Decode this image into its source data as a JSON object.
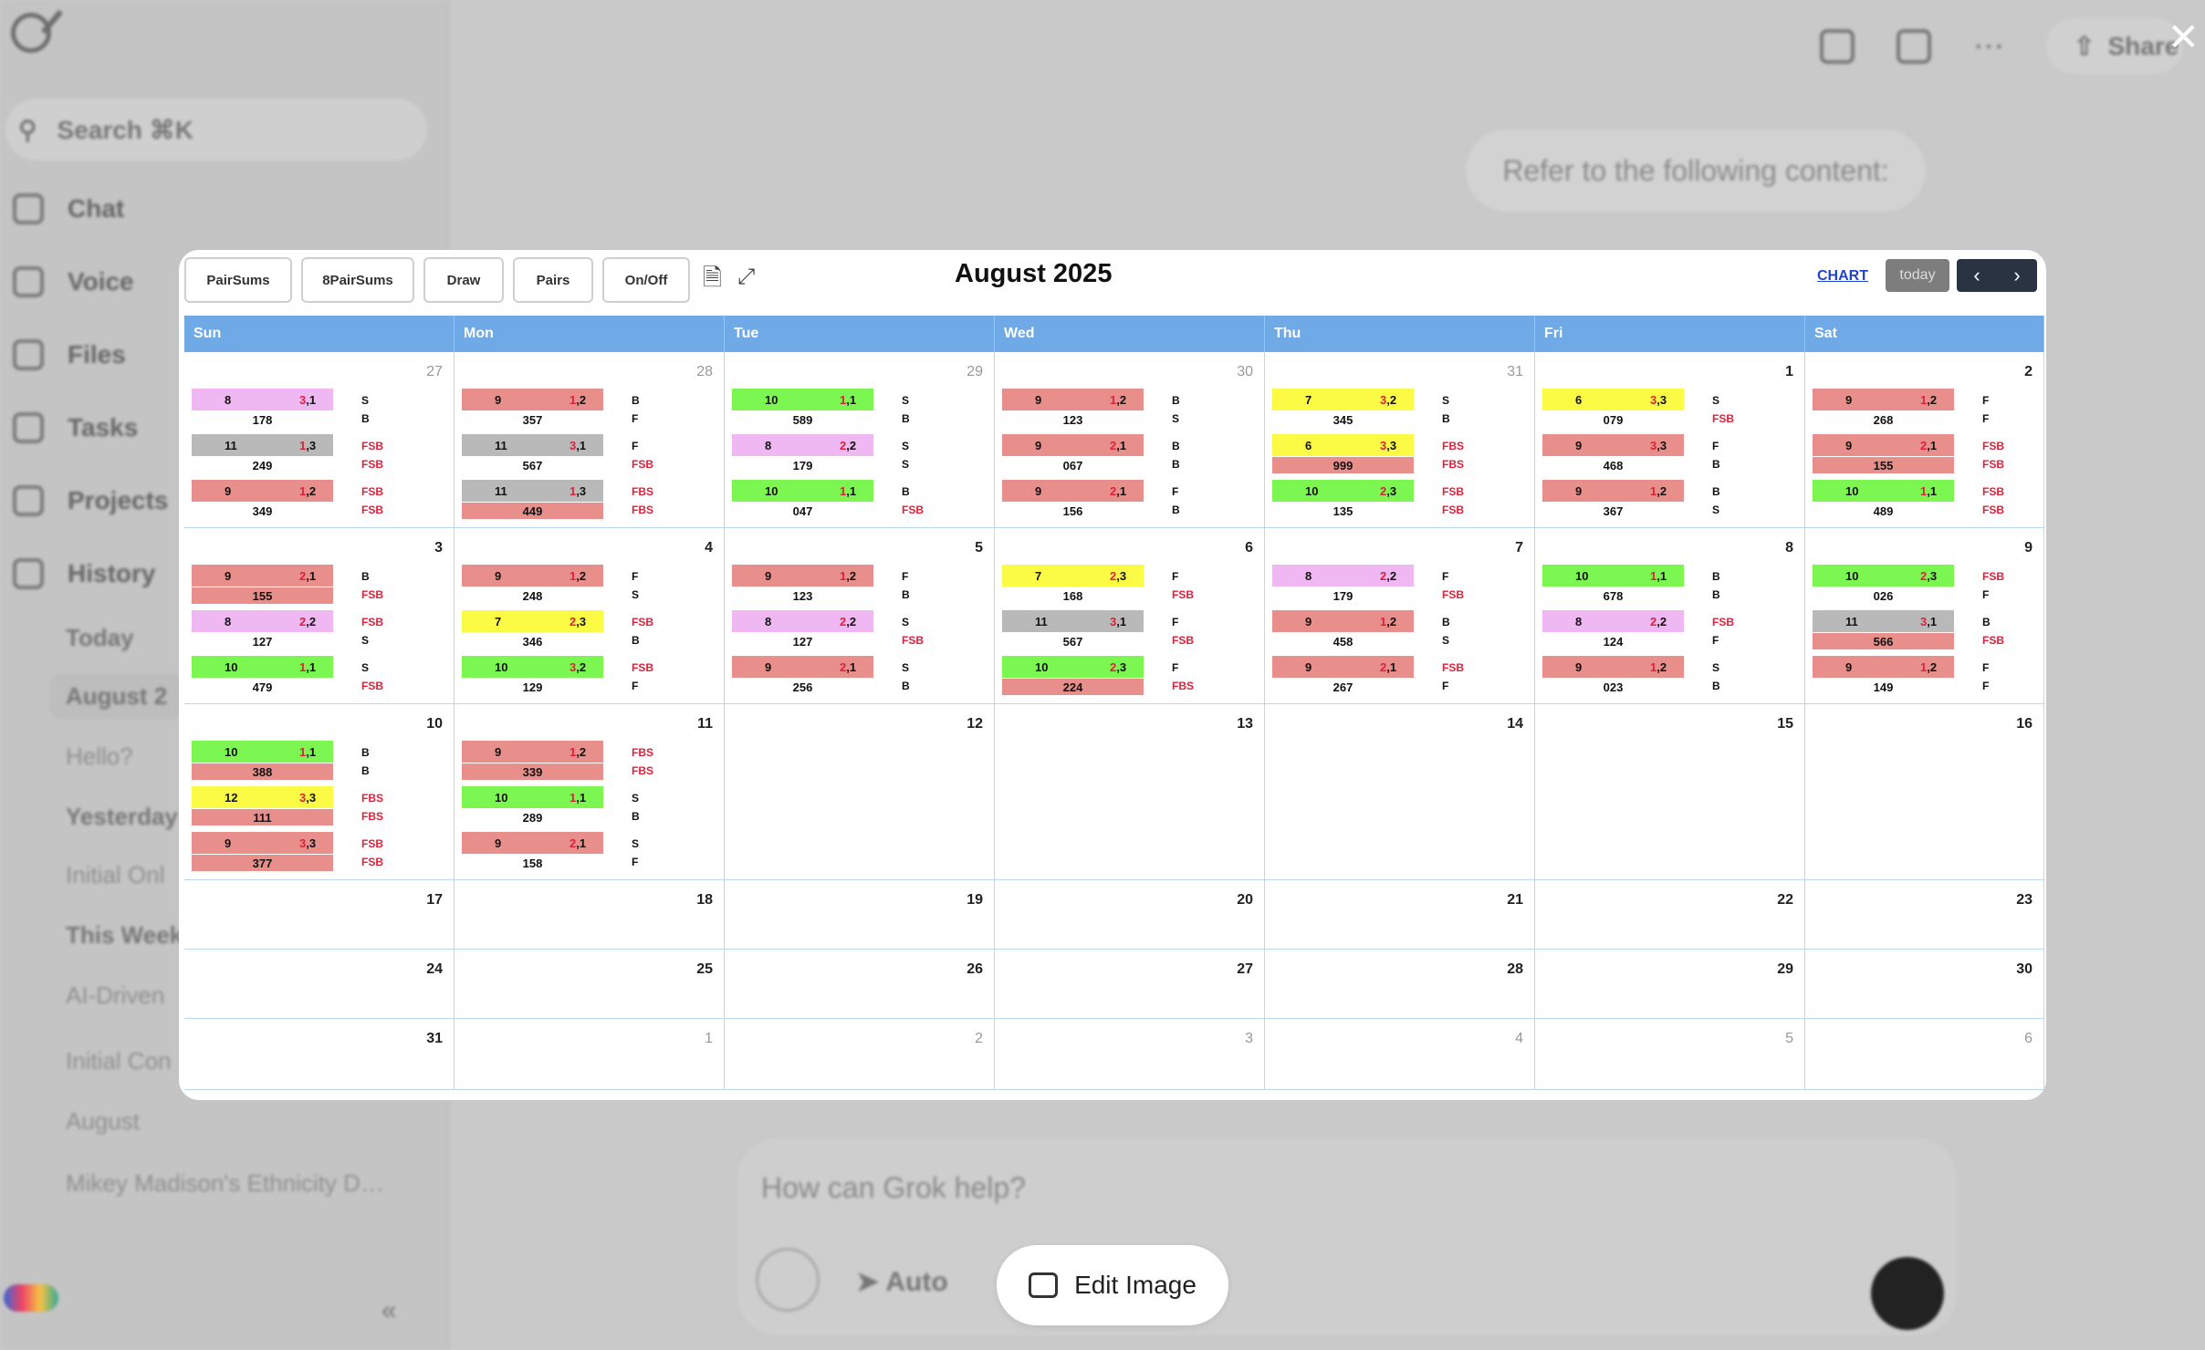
{
  "app": {
    "search_placeholder": "Search ⌘K",
    "nav": [
      "Chat",
      "Voice",
      "Files",
      "Tasks",
      "Projects",
      "History"
    ],
    "history": [
      {
        "label": "Today",
        "style": "head"
      },
      {
        "label": "August 2",
        "style": "sel"
      },
      {
        "label": "Hello?",
        "style": "dim"
      },
      {
        "label": "Yesterday",
        "style": "head"
      },
      {
        "label": "Initial Onl",
        "style": "dim"
      },
      {
        "label": "This Week",
        "style": "head"
      },
      {
        "label": "AI-Driven",
        "style": "dim"
      },
      {
        "label": "Initial Con",
        "style": "dim"
      },
      {
        "label": "August",
        "style": "dim"
      },
      {
        "label": "Mikey Madison's Ethnicity D…",
        "style": "dim"
      }
    ],
    "share_label": "Share",
    "bubble_text": "Refer to the following content:",
    "composer_placeholder": "How can Grok help?",
    "auto_label": "Auto",
    "edit_image_label": "Edit Image",
    "close_glyph": "✕"
  },
  "calendar": {
    "toolbar": [
      "PairSums",
      "8PairSums",
      "Draw",
      "Pairs",
      "On/Off"
    ],
    "title": "August 2025",
    "chart_link": "CHART",
    "today_label": "today",
    "prev": "‹",
    "next": "›",
    "weekdays": [
      "Sun",
      "Mon",
      "Tue",
      "Wed",
      "Thu",
      "Fri",
      "Sat"
    ],
    "colors": {
      "pink": "#e98f8b",
      "green": "#7cf752",
      "yellow": "#fbfb46",
      "gray": "#b9b9b9",
      "lavender": "#f0b8f2",
      "header": "#6fa9e6"
    },
    "weeks": [
      {
        "days": [
          {
            "d": "27",
            "other": true,
            "events": [
              {
                "c": "lav",
                "n": "8",
                "p": [
                  "3",
                  ",1"
                ],
                "s": "178",
                "l1": "S",
                "l2": "B"
              },
              {
                "c": "gray",
                "n": "11",
                "p": [
                  "1",
                  ",3"
                ],
                "s": "249",
                "l1": "FSB",
                "l2": "FSB",
                "red": true
              },
              {
                "c": "pink",
                "n": "9",
                "p": [
                  "1",
                  ",2"
                ],
                "s": "349",
                "l1": "FSB",
                "l2": "FSB",
                "red": true
              }
            ]
          },
          {
            "d": "28",
            "other": true,
            "events": [
              {
                "c": "pink",
                "n": "9",
                "p": [
                  "1",
                  ",2"
                ],
                "s": "357",
                "l1": "B",
                "l2": "F"
              },
              {
                "c": "gray",
                "n": "11",
                "p": [
                  "3",
                  ",1"
                ],
                "s": "567",
                "l1": "F",
                "l2": "FSB",
                "red2": true
              },
              {
                "c": "gray",
                "n": "11",
                "p": [
                  "1",
                  ",3"
                ],
                "s": "449",
                "sc": "pink",
                "l1": "FBS",
                "l2": "FBS",
                "red": true
              }
            ]
          },
          {
            "d": "29",
            "other": true,
            "events": [
              {
                "c": "green",
                "n": "10",
                "p": [
                  "1",
                  ",1"
                ],
                "s": "589",
                "l1": "S",
                "l2": "B"
              },
              {
                "c": "lav",
                "n": "8",
                "p": [
                  "2",
                  ",2"
                ],
                "s": "179",
                "l1": "S",
                "l2": "S"
              },
              {
                "c": "green",
                "n": "10",
                "p": [
                  "1",
                  ",1"
                ],
                "s": "047",
                "l1": "B",
                "l2": "FSB",
                "red2": true
              }
            ]
          },
          {
            "d": "30",
            "other": true,
            "events": [
              {
                "c": "pink",
                "n": "9",
                "p": [
                  "1",
                  ",2"
                ],
                "s": "123",
                "l1": "B",
                "l2": "S"
              },
              {
                "c": "pink",
                "n": "9",
                "p": [
                  "2",
                  ",1"
                ],
                "s": "067",
                "l1": "B",
                "l2": "B"
              },
              {
                "c": "pink",
                "n": "9",
                "p": [
                  "2",
                  ",1"
                ],
                "s": "156",
                "l1": "F",
                "l2": "B"
              }
            ]
          },
          {
            "d": "31",
            "other": true,
            "events": [
              {
                "c": "yellow",
                "n": "7",
                "p": [
                  "3",
                  ",2"
                ],
                "s": "345",
                "l1": "S",
                "l2": "B"
              },
              {
                "c": "yellow",
                "n": "6",
                "p": [
                  "3",
                  ",3"
                ],
                "s": "999",
                "sc": "pink",
                "l1": "FBS",
                "l2": "FBS",
                "red": true
              },
              {
                "c": "green",
                "n": "10",
                "p": [
                  "2",
                  ",3"
                ],
                "s": "135",
                "l1": "FSB",
                "l2": "FSB",
                "red": true
              }
            ]
          },
          {
            "d": "1",
            "events": [
              {
                "c": "yellow",
                "n": "6",
                "p": [
                  "3",
                  ",3"
                ],
                "s": "079",
                "l1": "S",
                "l2": "FSB",
                "red2": true
              },
              {
                "c": "pink",
                "n": "9",
                "p": [
                  "3",
                  ",3"
                ],
                "s": "468",
                "l1": "F",
                "l2": "B"
              },
              {
                "c": "pink",
                "n": "9",
                "p": [
                  "1",
                  ",2"
                ],
                "s": "367",
                "l1": "B",
                "l2": "S"
              }
            ]
          },
          {
            "d": "2",
            "events": [
              {
                "c": "pink",
                "n": "9",
                "p": [
                  "1",
                  ",2"
                ],
                "s": "268",
                "l1": "F",
                "l2": "F"
              },
              {
                "c": "pink",
                "n": "9",
                "p": [
                  "2",
                  ",1"
                ],
                "s": "155",
                "sc": "pink",
                "l1": "FSB",
                "l2": "FSB",
                "red": true
              },
              {
                "c": "green",
                "n": "10",
                "p": [
                  "1",
                  ",1"
                ],
                "s": "489",
                "l1": "FSB",
                "l2": "FSB",
                "red": true
              }
            ]
          }
        ]
      },
      {
        "days": [
          {
            "d": "3",
            "events": [
              {
                "c": "pink",
                "n": "9",
                "p": [
                  "2",
                  ",1"
                ],
                "s": "155",
                "sc": "pink",
                "l1": "B",
                "l2": "FSB",
                "red2": true
              },
              {
                "c": "lav",
                "n": "8",
                "p": [
                  "2",
                  ",2"
                ],
                "s": "127",
                "l1": "FSB",
                "l2": "S",
                "red1": true
              },
              {
                "c": "green",
                "n": "10",
                "p": [
                  "1",
                  ",1"
                ],
                "s": "479",
                "l1": "S",
                "l2": "FSB",
                "red2": true
              }
            ]
          },
          {
            "d": "4",
            "events": [
              {
                "c": "pink",
                "n": "9",
                "p": [
                  "1",
                  ",2"
                ],
                "s": "248",
                "l1": "F",
                "l2": "S"
              },
              {
                "c": "yellow",
                "n": "7",
                "p": [
                  "2",
                  ",3"
                ],
                "s": "346",
                "l1": "FSB",
                "l2": "B",
                "red1": true
              },
              {
                "c": "green",
                "n": "10",
                "p": [
                  "3",
                  ",2"
                ],
                "s": "129",
                "l1": "FSB",
                "l2": "F",
                "red1": true
              }
            ]
          },
          {
            "d": "5",
            "events": [
              {
                "c": "pink",
                "n": "9",
                "p": [
                  "1",
                  ",2"
                ],
                "s": "123",
                "l1": "F",
                "l2": "B"
              },
              {
                "c": "lav",
                "n": "8",
                "p": [
                  "2",
                  ",2"
                ],
                "s": "127",
                "l1": "S",
                "l2": "FSB",
                "red2": true
              },
              {
                "c": "pink",
                "n": "9",
                "p": [
                  "2",
                  ",1"
                ],
                "s": "256",
                "l1": "S",
                "l2": "B"
              }
            ]
          },
          {
            "d": "6",
            "events": [
              {
                "c": "yellow",
                "n": "7",
                "p": [
                  "2",
                  ",3"
                ],
                "s": "168",
                "l1": "F",
                "l2": "FSB",
                "red2": true
              },
              {
                "c": "gray",
                "n": "11",
                "p": [
                  "3",
                  ",1"
                ],
                "s": "567",
                "l1": "F",
                "l2": "FSB",
                "red2": true
              },
              {
                "c": "green",
                "n": "10",
                "p": [
                  "2",
                  ",3"
                ],
                "s": "224",
                "sc": "pink",
                "l1": "F",
                "l2": "FBS",
                "red2": true
              }
            ]
          },
          {
            "d": "7",
            "events": [
              {
                "c": "lav",
                "n": "8",
                "p": [
                  "2",
                  ",2"
                ],
                "s": "179",
                "l1": "F",
                "l2": "FSB",
                "red2": true
              },
              {
                "c": "pink",
                "n": "9",
                "p": [
                  "1",
                  ",2"
                ],
                "s": "458",
                "l1": "B",
                "l2": "S"
              },
              {
                "c": "pink",
                "n": "9",
                "p": [
                  "2",
                  ",1"
                ],
                "s": "267",
                "l1": "FSB",
                "l2": "F",
                "red1": true
              }
            ]
          },
          {
            "d": "8",
            "events": [
              {
                "c": "green",
                "n": "10",
                "p": [
                  "1",
                  ",1"
                ],
                "s": "678",
                "l1": "B",
                "l2": "B"
              },
              {
                "c": "lav",
                "n": "8",
                "p": [
                  "2",
                  ",2"
                ],
                "s": "124",
                "l1": "FSB",
                "l2": "F",
                "red1": true
              },
              {
                "c": "pink",
                "n": "9",
                "p": [
                  "1",
                  ",2"
                ],
                "s": "023",
                "l1": "S",
                "l2": "B"
              }
            ]
          },
          {
            "d": "9",
            "events": [
              {
                "c": "green",
                "n": "10",
                "p": [
                  "2",
                  ",3"
                ],
                "s": "026",
                "l1": "FSB",
                "l2": "F",
                "red1": true
              },
              {
                "c": "gray",
                "n": "11",
                "p": [
                  "3",
                  ",1"
                ],
                "s": "566",
                "sc": "pink",
                "l1": "B",
                "l2": "FSB",
                "red2": true
              },
              {
                "c": "pink",
                "n": "9",
                "p": [
                  "1",
                  ",2"
                ],
                "s": "149",
                "l1": "F",
                "l2": "F"
              }
            ]
          }
        ]
      },
      {
        "days": [
          {
            "d": "10",
            "events": [
              {
                "c": "green",
                "n": "10",
                "p": [
                  "1",
                  ",1"
                ],
                "s": "388",
                "sc": "pink",
                "l1": "B",
                "l2": "B"
              },
              {
                "c": "yellow",
                "n": "12",
                "p": [
                  "3",
                  ",3"
                ],
                "s": "111",
                "sc": "pink",
                "l1": "FBS",
                "l2": "FBS",
                "red": true
              },
              {
                "c": "pink",
                "n": "9",
                "p": [
                  "3",
                  ",3"
                ],
                "s": "377",
                "sc": "pink",
                "l1": "FSB",
                "l2": "FSB",
                "red": true
              }
            ]
          },
          {
            "d": "11",
            "events": [
              {
                "c": "pink",
                "n": "9",
                "p": [
                  "1",
                  ",2"
                ],
                "s": "339",
                "sc": "pink",
                "l1": "FBS",
                "l2": "FBS",
                "red": true
              },
              {
                "c": "green",
                "n": "10",
                "p": [
                  "1",
                  ",1"
                ],
                "s": "289",
                "l1": "S",
                "l2": "B"
              },
              {
                "c": "pink",
                "n": "9",
                "p": [
                  "2",
                  ",1"
                ],
                "s": "158",
                "l1": "S",
                "l2": "F"
              }
            ]
          },
          {
            "d": "12",
            "events": []
          },
          {
            "d": "13",
            "events": []
          },
          {
            "d": "14",
            "events": []
          },
          {
            "d": "15",
            "events": []
          },
          {
            "d": "16",
            "events": []
          }
        ]
      },
      {
        "days": [
          {
            "d": "17"
          },
          {
            "d": "18"
          },
          {
            "d": "19"
          },
          {
            "d": "20"
          },
          {
            "d": "21"
          },
          {
            "d": "22"
          },
          {
            "d": "23"
          }
        ]
      },
      {
        "days": [
          {
            "d": "24"
          },
          {
            "d": "25"
          },
          {
            "d": "26"
          },
          {
            "d": "27"
          },
          {
            "d": "28"
          },
          {
            "d": "29"
          },
          {
            "d": "30"
          }
        ]
      },
      {
        "days": [
          {
            "d": "31"
          },
          {
            "d": "1",
            "other": true
          },
          {
            "d": "2",
            "other": true
          },
          {
            "d": "3",
            "other": true
          },
          {
            "d": "4",
            "other": true
          },
          {
            "d": "5",
            "other": true
          },
          {
            "d": "6",
            "other": true
          }
        ]
      }
    ]
  }
}
